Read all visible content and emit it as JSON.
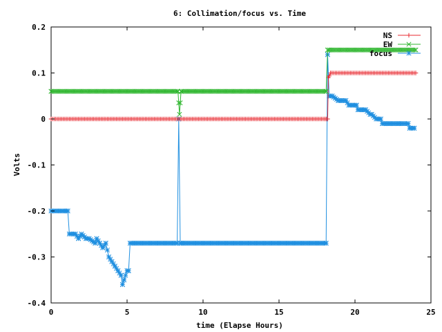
{
  "chart_data": {
    "type": "line",
    "title": "6: Collimation/focus vs. Time",
    "xlabel": "time (Elapse Hours)",
    "ylabel": "Volts",
    "xlim": [
      0,
      25
    ],
    "ylim": [
      -0.4,
      0.2
    ],
    "xticks": [
      0,
      5,
      10,
      15,
      20,
      25
    ],
    "xtick_labels": [
      "0",
      "5",
      "10",
      "15",
      "20",
      "25"
    ],
    "yticks": [
      -0.4,
      -0.3,
      -0.2,
      -0.1,
      0,
      0.1,
      0.2
    ],
    "ytick_labels": [
      "-0.4",
      "-0.3",
      "-0.2",
      "-0.1",
      "0",
      "0.1",
      "0.2"
    ],
    "grid": false,
    "legend_position": "top-right",
    "series": [
      {
        "name": "NS",
        "color": "#e8282f",
        "marker": "plus",
        "x": [
          0,
          18.1,
          18.2,
          18.25,
          18.4,
          24
        ],
        "y": [
          0,
          0,
          0,
          0.09,
          0.1,
          0.1
        ]
      },
      {
        "name": "EW",
        "color": "#2fb62f",
        "marker": "cross",
        "x": [
          0,
          8.35,
          8.45,
          8.55,
          18.1,
          18.2,
          18.3,
          24
        ],
        "y": [
          0.06,
          0.06,
          0.01,
          0.06,
          0.06,
          0.15,
          0.15,
          0.15
        ]
      },
      {
        "name": "focus",
        "color": "#1f8fe0",
        "marker": "star",
        "x": [
          0,
          1.0,
          1.1,
          1.2,
          1.6,
          1.8,
          2.0,
          2.3,
          2.5,
          2.9,
          3.0,
          3.2,
          3.4,
          3.6,
          3.8,
          4.0,
          4.2,
          4.4,
          4.6,
          4.7,
          4.8,
          5.0,
          5.1,
          5.2,
          8.3,
          8.4,
          8.5,
          8.6,
          8.7,
          18.1,
          18.2,
          18.3,
          18.4,
          18.5,
          18.9,
          19.1,
          19.4,
          19.6,
          20.1,
          20.2,
          20.6,
          20.7,
          21.0,
          21.1,
          21.4,
          21.5,
          21.7,
          21.8,
          22.2,
          22.3,
          22.8,
          22.9,
          23.5,
          23.6,
          23.8,
          23.9
        ],
        "y": [
          -0.2,
          -0.2,
          -0.2,
          -0.25,
          -0.25,
          -0.26,
          -0.25,
          -0.26,
          -0.26,
          -0.27,
          -0.26,
          -0.27,
          -0.28,
          -0.27,
          -0.3,
          -0.31,
          -0.32,
          -0.33,
          -0.34,
          -0.36,
          -0.35,
          -0.33,
          -0.33,
          -0.27,
          -0.27,
          0.0,
          -0.27,
          -0.27,
          -0.27,
          -0.27,
          0.14,
          0.05,
          0.05,
          0.05,
          0.04,
          0.04,
          0.04,
          0.03,
          0.03,
          0.02,
          0.02,
          0.02,
          0.01,
          0.01,
          0.0,
          0.0,
          0.0,
          -0.01,
          -0.01,
          -0.01,
          -0.01,
          -0.01,
          -0.01,
          -0.02,
          -0.02,
          -0.02
        ]
      }
    ]
  }
}
